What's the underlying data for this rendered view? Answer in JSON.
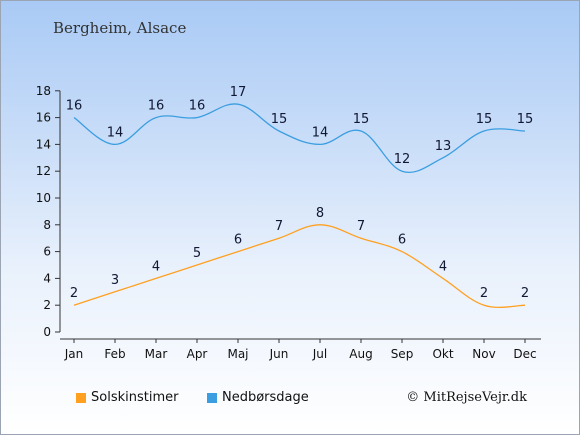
{
  "location": "Bergheim, Alsace",
  "credit": "© MitRejseVejr.dk",
  "colors": {
    "sunshine": "#ffa020",
    "rain_days": "#3b9ee0"
  },
  "chart_data": {
    "type": "line",
    "categories": [
      "Jan",
      "Feb",
      "Mar",
      "Apr",
      "Maj",
      "Jun",
      "Jul",
      "Aug",
      "Sep",
      "Okt",
      "Nov",
      "Dec"
    ],
    "series": [
      {
        "name": "Solskinstimer",
        "values": [
          2,
          3,
          4,
          5,
          6,
          7,
          8,
          7,
          6,
          4,
          2,
          2
        ]
      },
      {
        "name": "Nedbørsdage",
        "values": [
          16,
          14,
          16,
          16,
          17,
          15,
          14,
          15,
          12,
          13,
          15,
          15
        ]
      }
    ],
    "yticks": [
      0,
      2,
      4,
      6,
      8,
      10,
      12,
      14,
      16,
      18
    ],
    "ylim": [
      0,
      18
    ],
    "grid": false,
    "legend": "bottom-left"
  }
}
